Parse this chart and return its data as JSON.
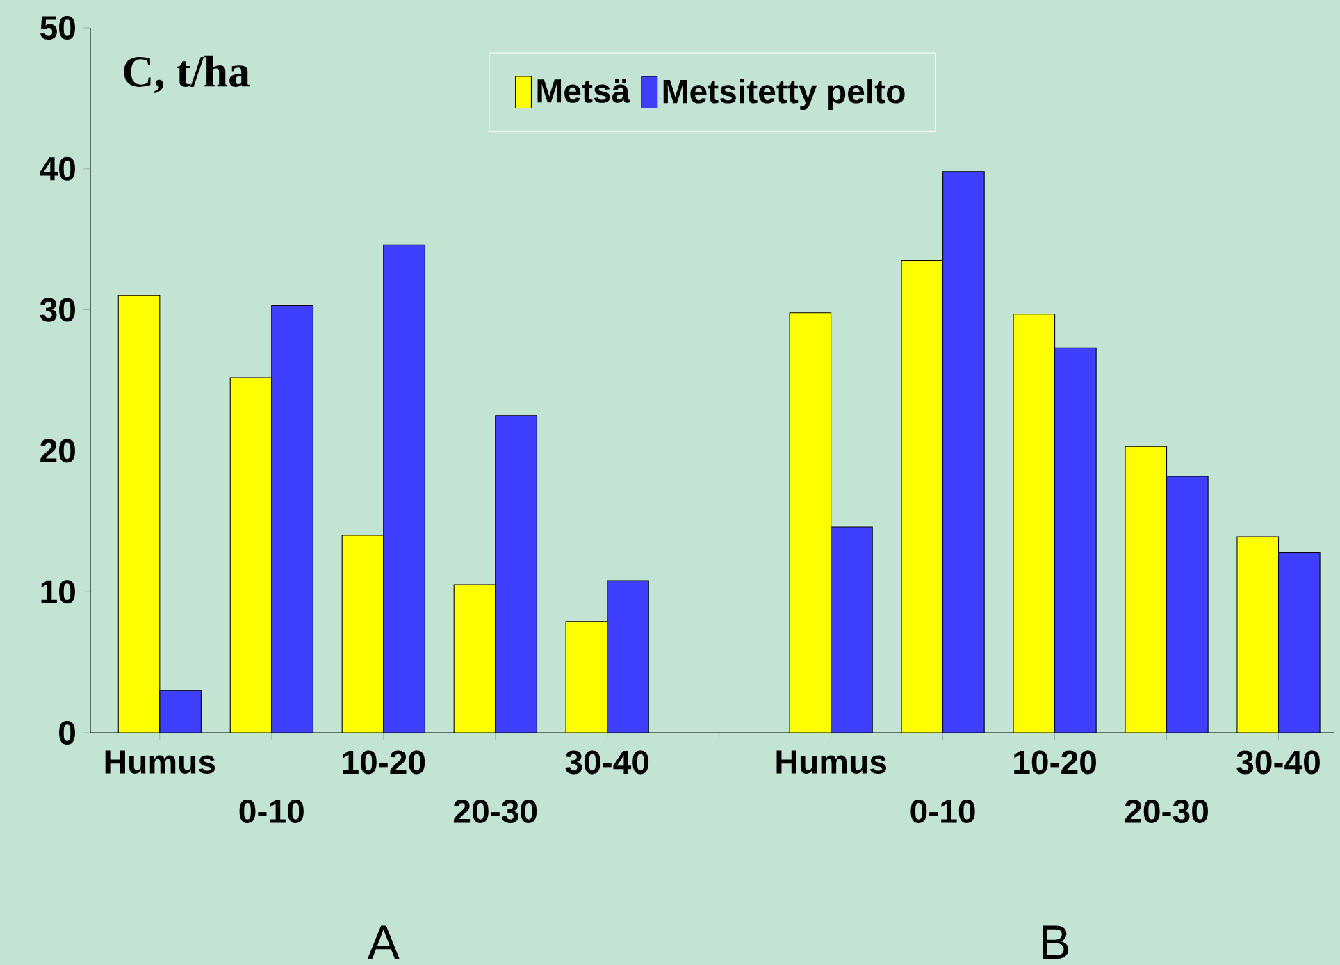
{
  "chart_data": {
    "type": "bar",
    "ylabel": "C, t/ha",
    "categories": [
      "Humus",
      "0-10",
      "10-20",
      "20-30",
      "30-40",
      null,
      "Humus",
      "0-10",
      "10-20",
      "20-30",
      "30-40"
    ],
    "series": [
      {
        "name": "Metsä",
        "color": "#ffff00",
        "values": [
          31,
          25.2,
          14,
          10.5,
          7.9,
          null,
          29.8,
          33.5,
          29.7,
          20.3,
          13.9
        ]
      },
      {
        "name": "Metsitetty pelto",
        "color": "#3f3fff",
        "values": [
          3,
          30.3,
          34.6,
          22.5,
          10.8,
          null,
          14.6,
          39.8,
          27.3,
          18.2,
          12.8
        ]
      }
    ],
    "ylim": [
      0,
      50
    ],
    "yticks": [
      0,
      10,
      20,
      30,
      40,
      50
    ],
    "legend": "top",
    "grid": false,
    "annotations": [
      "A",
      "B"
    ]
  }
}
